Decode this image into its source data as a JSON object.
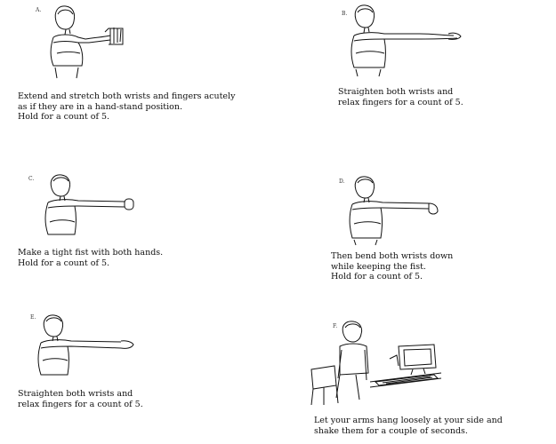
{
  "panels": [
    {
      "letter": "A.",
      "lines": [
        "Extend and stretch both wrists and fingers acutely",
        "as if they are in a hand-stand position.",
        "Hold for a count of 5."
      ]
    },
    {
      "letter": "B.",
      "lines": [
        "Straighten both wrists and",
        "relax fingers for a count of 5."
      ]
    },
    {
      "letter": "C.",
      "lines": [
        "Make a tight fist with both hands.",
        "Hold for a count of 5."
      ]
    },
    {
      "letter": "D.",
      "lines": [
        "Then bend both wrists down",
        "while keeping the fist.",
        "Hold for a count of 5."
      ]
    },
    {
      "letter": "E.",
      "lines": [
        "Straighten both wrists and",
        "relax fingers for a count of 5."
      ]
    },
    {
      "letter": "F.",
      "lines": [
        "Let your arms hang loosely at your side and",
        "shake them for a couple of seconds."
      ]
    }
  ]
}
